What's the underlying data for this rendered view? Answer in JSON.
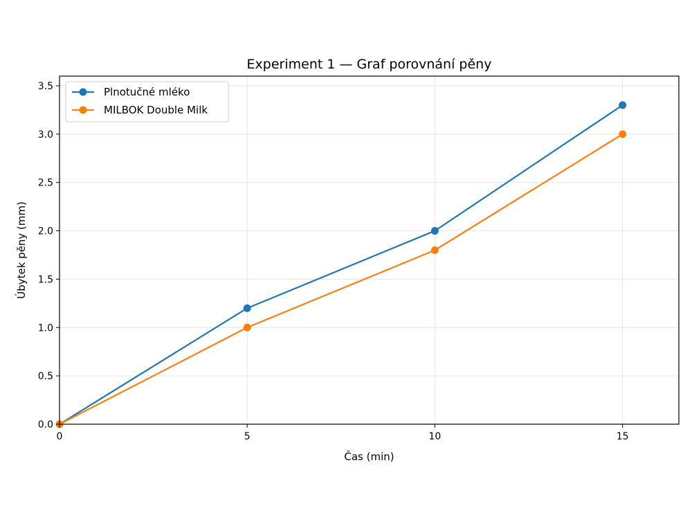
{
  "chart_data": {
    "type": "line",
    "title": "Experiment 1 — Graf porovnání pěny",
    "xlabel": "Čas (min)",
    "ylabel": "Úbytek pěny (mm)",
    "x": [
      0,
      5,
      10,
      15
    ],
    "xlim": [
      0,
      16.5
    ],
    "ylim": [
      0,
      3.6
    ],
    "xticks": [
      0,
      5,
      10,
      15
    ],
    "yticks": [
      0.0,
      0.5,
      1.0,
      1.5,
      2.0,
      2.5,
      3.0,
      3.5
    ],
    "xtick_labels": [
      "0",
      "5",
      "10",
      "15"
    ],
    "ytick_labels": [
      "0.0",
      "0.5",
      "1.0",
      "1.5",
      "2.0",
      "2.5",
      "3.0",
      "3.5"
    ],
    "grid": true,
    "legend_position": "top-left",
    "series": [
      {
        "name": "Plnotučné mléko",
        "values": [
          0,
          1.2,
          2.0,
          3.3
        ],
        "color": "#1f77b4"
      },
      {
        "name": "MILBOK Double Milk",
        "values": [
          0,
          1.0,
          1.8,
          3.0
        ],
        "color": "#ff7f0e"
      }
    ]
  }
}
